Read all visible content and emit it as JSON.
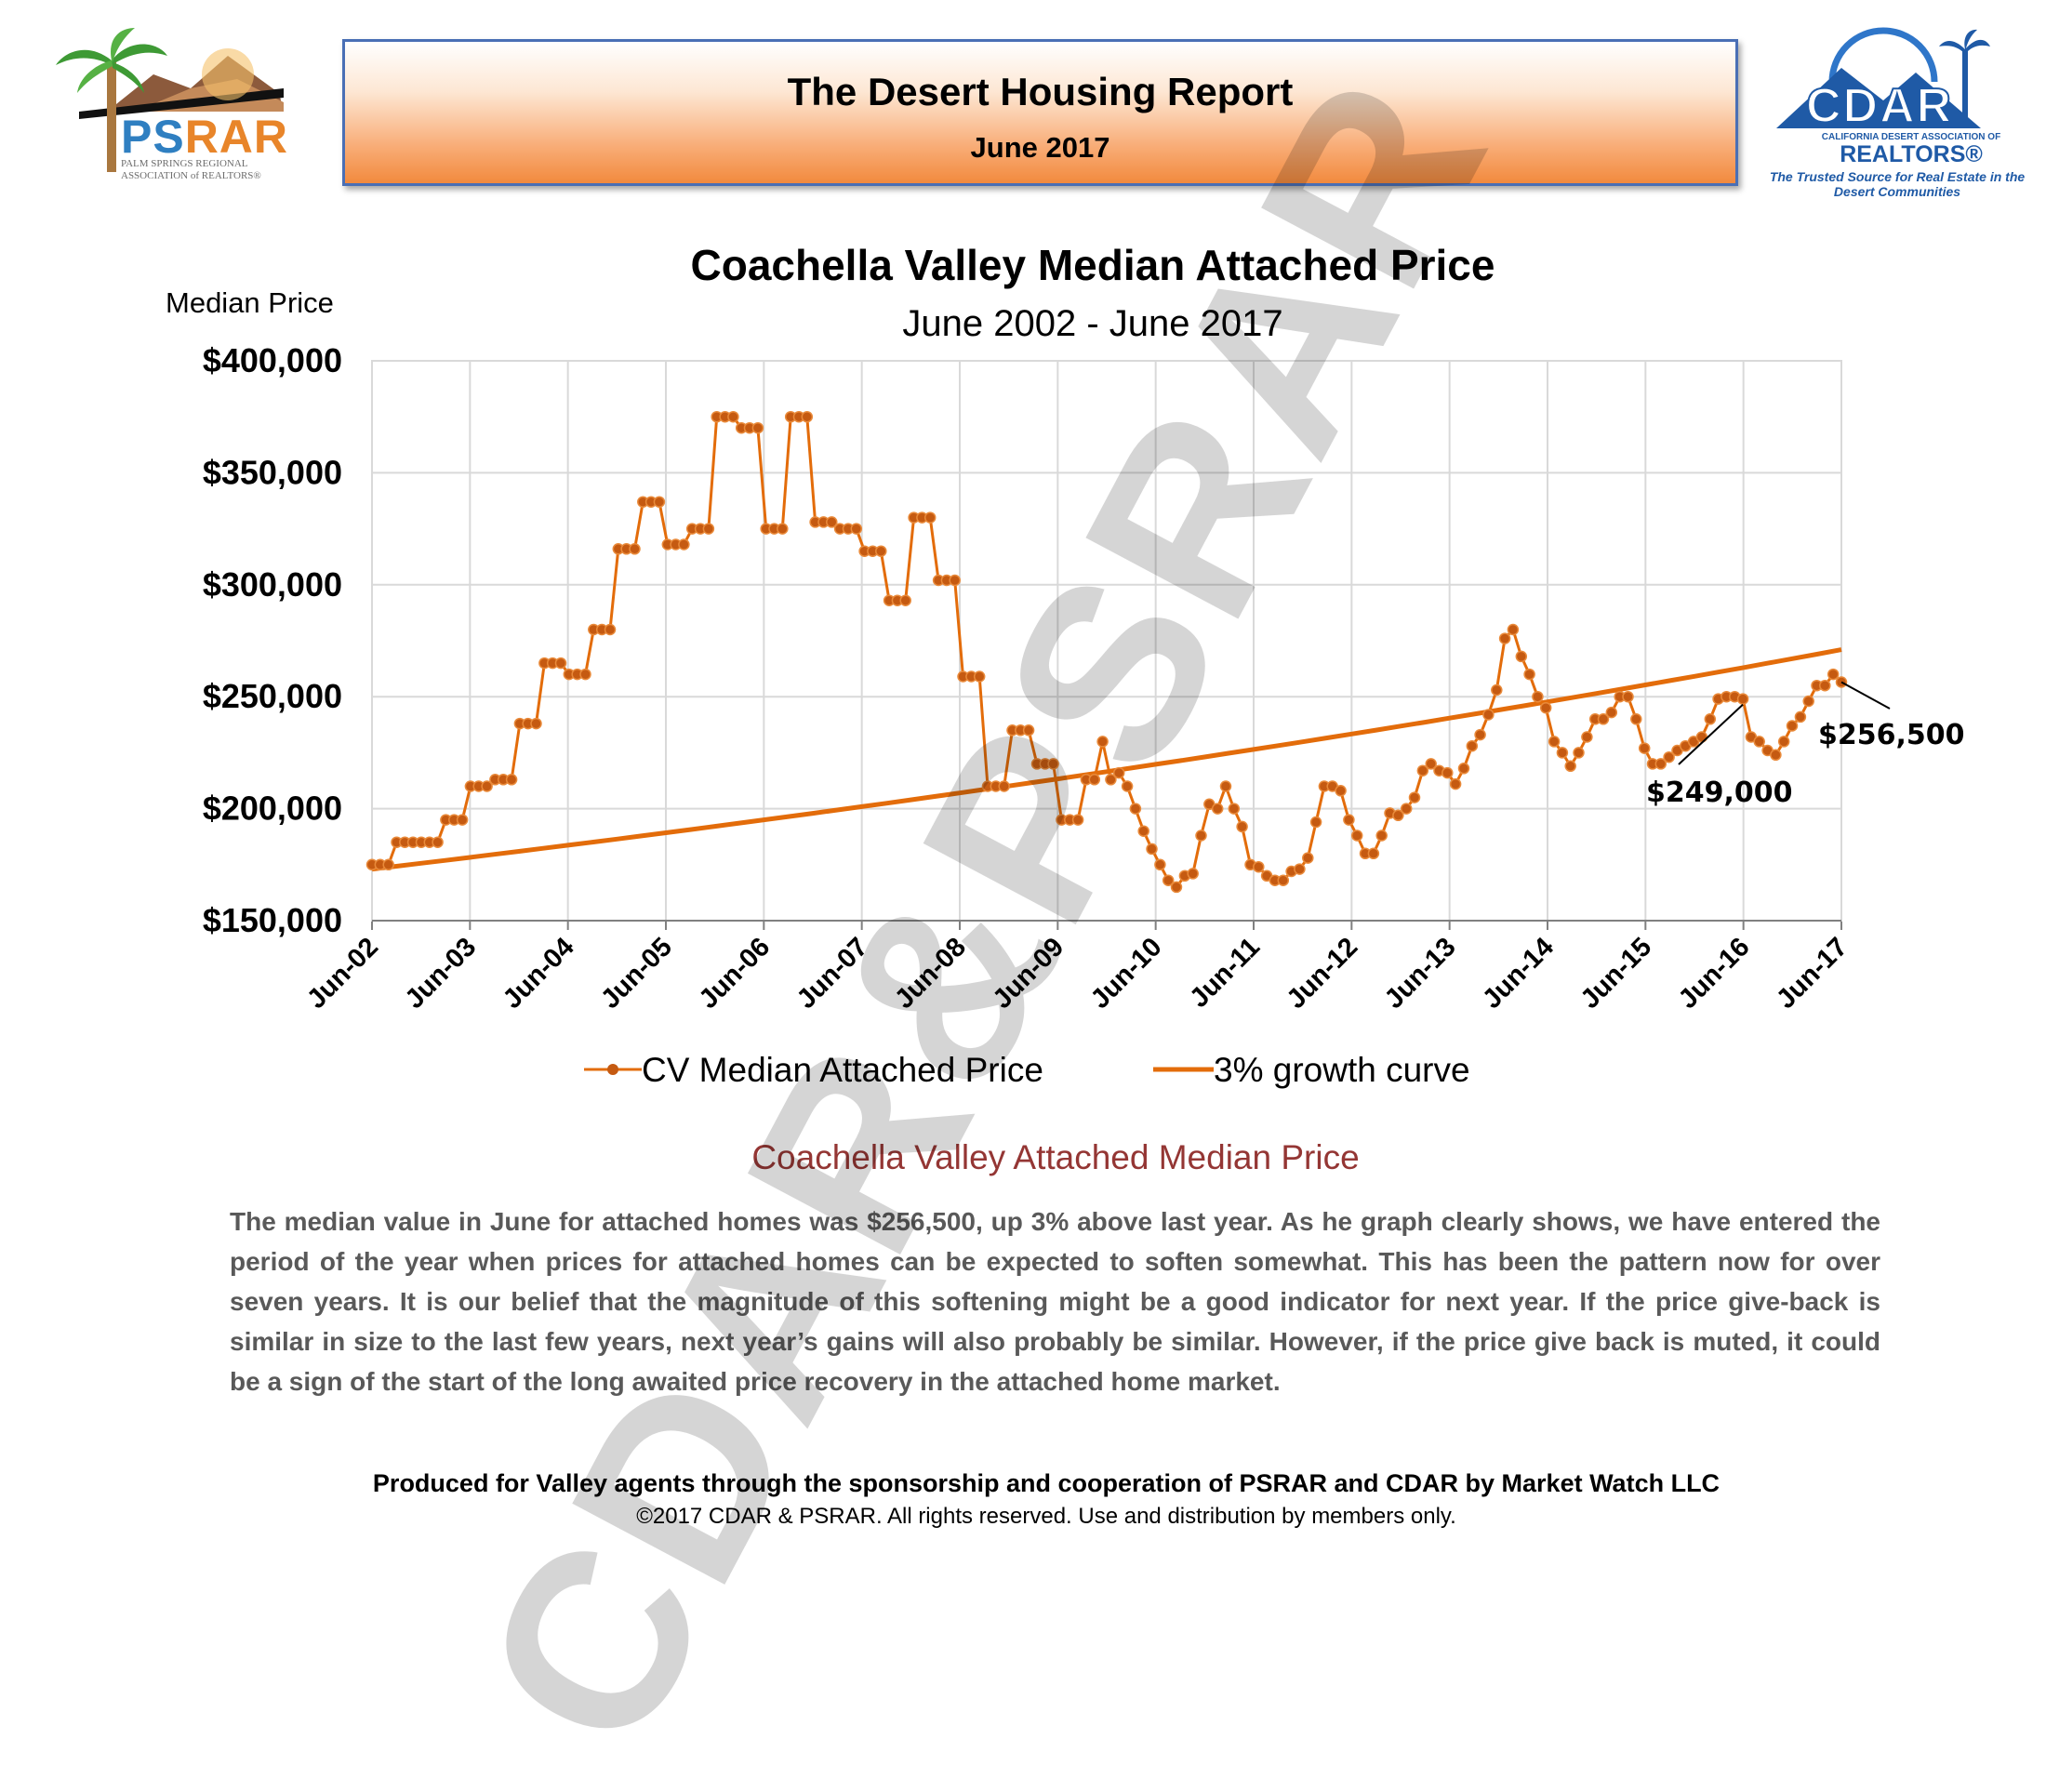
{
  "header": {
    "title": "The Desert Housing Report",
    "date": "June 2017"
  },
  "logos": {
    "psrar": {
      "name": "PSRAR",
      "subtitle": "PALM SPRINGS REGIONAL ASSOCIATION of REALTORS®"
    },
    "cdar": {
      "name": "CDAR",
      "small": "CALIFORNIA DESERT ASSOCIATION OF",
      "realtors": "REALTORS®",
      "tagline": "The Trusted Source for Real Estate in the Desert Communities"
    }
  },
  "watermark": "CDAR&PSRAR",
  "chart_data": {
    "type": "line",
    "title": "Coachella Valley Median Attached Price",
    "subtitle": "June 2002 - June 2017",
    "ylabel": "Median Price",
    "ylim": [
      150000,
      400000
    ],
    "ytick_values": [
      150000,
      200000,
      250000,
      300000,
      350000,
      400000
    ],
    "ytick_labels": [
      "$150,000",
      "$200,000",
      "$250,000",
      "$300,000",
      "$350,000",
      "$400,000"
    ],
    "xtick_labels": [
      "Jun-02",
      "Jun-03",
      "Jun-04",
      "Jun-05",
      "Jun-06",
      "Jun-07",
      "Jun-08",
      "Jun-09",
      "Jun-10",
      "Jun-11",
      "Jun-12",
      "Jun-13",
      "Jun-14",
      "Jun-15",
      "Jun-16",
      "Jun-17"
    ],
    "grid": true,
    "legend": "bottom",
    "colors": {
      "series": "#e36c0a",
      "marker": "#c55a11",
      "grid": "#d9d9d9"
    },
    "series": [
      {
        "name": "CV Median Attached Price",
        "values": [
          175000,
          175000,
          175000,
          185000,
          185000,
          185000,
          185000,
          185000,
          185000,
          195000,
          195000,
          195000,
          210000,
          210000,
          210000,
          213000,
          213000,
          213000,
          238000,
          238000,
          238000,
          265000,
          265000,
          265000,
          260000,
          260000,
          260000,
          280000,
          280000,
          280000,
          316000,
          316000,
          316000,
          337000,
          337000,
          337000,
          318000,
          318000,
          318000,
          325000,
          325000,
          325000,
          375000,
          375000,
          375000,
          370000,
          370000,
          370000,
          325000,
          325000,
          325000,
          375000,
          375000,
          375000,
          328000,
          328000,
          328000,
          325000,
          325000,
          325000,
          315000,
          315000,
          315000,
          293000,
          293000,
          293000,
          330000,
          330000,
          330000,
          302000,
          302000,
          302000,
          259000,
          259000,
          259000,
          210000,
          210000,
          210000,
          235000,
          235000,
          235000,
          220000,
          220000,
          220000,
          195000,
          195000,
          195000,
          213000,
          213000,
          230000,
          213000,
          216000,
          210000,
          200000,
          190000,
          182000,
          175000,
          168000,
          165000,
          170000,
          171000,
          188000,
          202000,
          200000,
          210000,
          200000,
          192000,
          175000,
          174000,
          170000,
          168000,
          168000,
          172000,
          173000,
          178000,
          194000,
          210000,
          210000,
          208000,
          195000,
          188000,
          180000,
          180000,
          188000,
          198000,
          197000,
          200000,
          205000,
          217000,
          220000,
          217000,
          216000,
          211000,
          218000,
          228000,
          233000,
          242000,
          253000,
          276000,
          280000,
          268000,
          260000,
          250000,
          245000,
          230000,
          225000,
          219000,
          225000,
          232000,
          240000,
          240000,
          243000,
          250000,
          250000,
          240000,
          227000,
          220000,
          220000,
          223000,
          226000,
          228000,
          230000,
          232000,
          240000,
          249000,
          250000,
          250000,
          249000,
          232000,
          230000,
          226000,
          224000,
          230000,
          237000,
          241000,
          248000,
          255000,
          255000,
          260000,
          256500
        ]
      },
      {
        "name": "3% growth curve",
        "growth_rate": 0.03,
        "start_value": 173000,
        "end_value": 271000
      }
    ],
    "annotations": [
      {
        "label": "$256,500",
        "point": "Jun-17",
        "value": 256500
      },
      {
        "label": "$249,000",
        "point": "Jun-16",
        "value": 249000
      }
    ]
  },
  "section": {
    "heading": "Coachella Valley Attached Median Price",
    "body": "The median value in June for attached homes was $256,500, up 3% above last year. As he graph clearly shows, we have entered the period of the year when prices for attached homes can be expected to soften somewhat. This has been the pattern now for over seven years. It is our belief that the magnitude of this softening might be a good indicator for next year. If the price give-back is similar in size to the last few years, next year’s gains will also probably be similar. However, if the price give back is muted, it could be a sign of the start of the long awaited price recovery in the attached home market."
  },
  "footer": {
    "main": "Produced for Valley agents through the sponsorship and cooperation of PSRAR and CDAR by Market Watch LLC",
    "copyright": "©2017 CDAR & PSRAR.  All rights reserved.  Use and distribution by members only."
  }
}
